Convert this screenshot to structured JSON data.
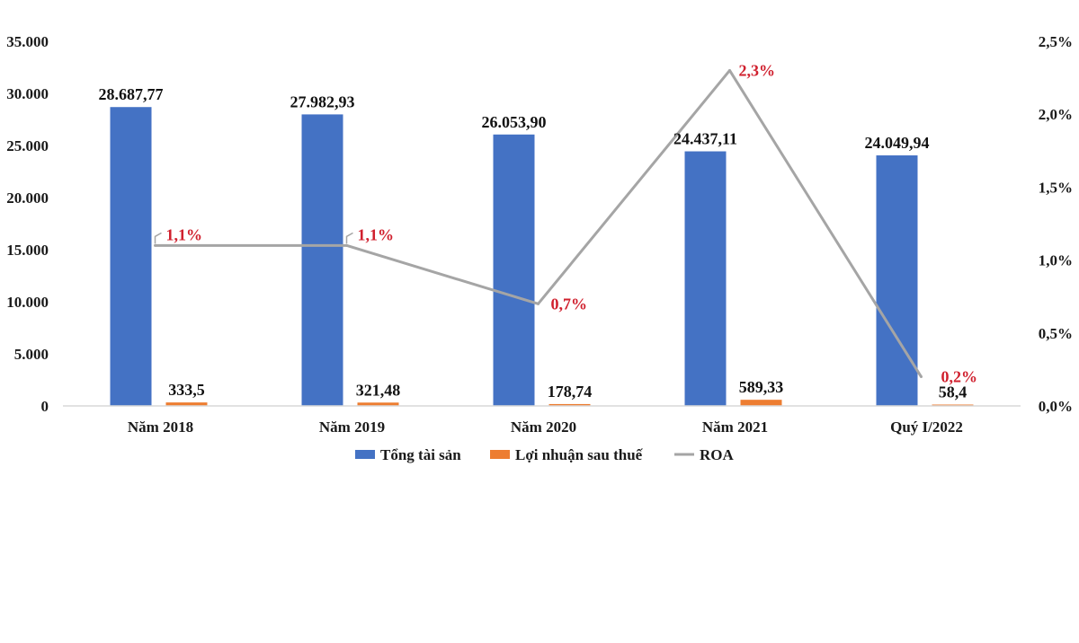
{
  "chart_data": {
    "type": "bar",
    "categories": [
      "Năm 2018",
      "Năm 2019",
      "Năm 2020",
      "Năm 2021",
      "Quý I/2022"
    ],
    "series": [
      {
        "name": "Tổng tài sản",
        "kind": "bar",
        "axis": "left",
        "color": "#4472c4",
        "values": [
          28687.77,
          27982.93,
          26053.9,
          24437.11,
          24049.94
        ],
        "labels": [
          "28.687,77",
          "27.982,93",
          "26.053,90",
          "24.437,11",
          "24.049,94"
        ]
      },
      {
        "name": "Lợi nhuận sau thuế",
        "kind": "bar",
        "axis": "left",
        "color": "#ed7d31",
        "values": [
          333.5,
          321.48,
          178.74,
          589.33,
          58.4
        ],
        "labels": [
          "333,5",
          "321,48",
          "178,74",
          "589,33",
          "58,4"
        ]
      },
      {
        "name": "ROA",
        "kind": "line",
        "axis": "right",
        "color": "#a5a5a5",
        "values": [
          1.1,
          1.1,
          0.7,
          2.3,
          0.2
        ],
        "labels": [
          "1,1%",
          "1,1%",
          "0,7%",
          "2,3%",
          "0,2%"
        ],
        "label_color": "#d0202e"
      }
    ],
    "y_left": {
      "ylim": [
        0,
        35000
      ],
      "ticks": [
        0,
        5000,
        10000,
        15000,
        20000,
        25000,
        30000,
        35000
      ],
      "tick_labels": [
        "0",
        "5.000",
        "10.000",
        "15.000",
        "20.000",
        "25.000",
        "30.000",
        "35.000"
      ]
    },
    "y_right": {
      "ylim": [
        0,
        2.5
      ],
      "ticks": [
        0,
        0.5,
        1.0,
        1.5,
        2.0,
        2.5
      ],
      "tick_labels": [
        "0,0%",
        "0,5%",
        "1,0%",
        "1,5%",
        "2,0%",
        "2,5%"
      ]
    },
    "legend": {
      "position": "bottom",
      "entries": [
        "Tổng tài sản",
        "Lợi nhuận sau thuế",
        "ROA"
      ]
    },
    "grid": false
  }
}
